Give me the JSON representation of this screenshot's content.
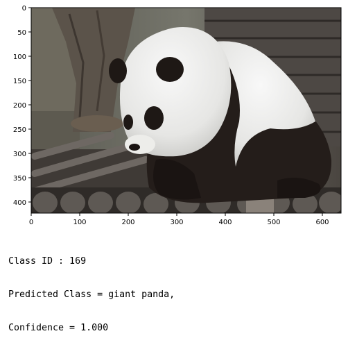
{
  "image": {
    "subject": "giant panda sitting on logs",
    "x_ticks": [
      "0",
      "100",
      "200",
      "300",
      "400",
      "500",
      "600"
    ],
    "y_ticks": [
      "0",
      "50",
      "100",
      "150",
      "200",
      "250",
      "300",
      "350",
      "400"
    ]
  },
  "caption": {
    "line1": "Class ID : 169",
    "line2": "Predicted Class = giant panda,",
    "line3": "Confidence = 1.000"
  }
}
